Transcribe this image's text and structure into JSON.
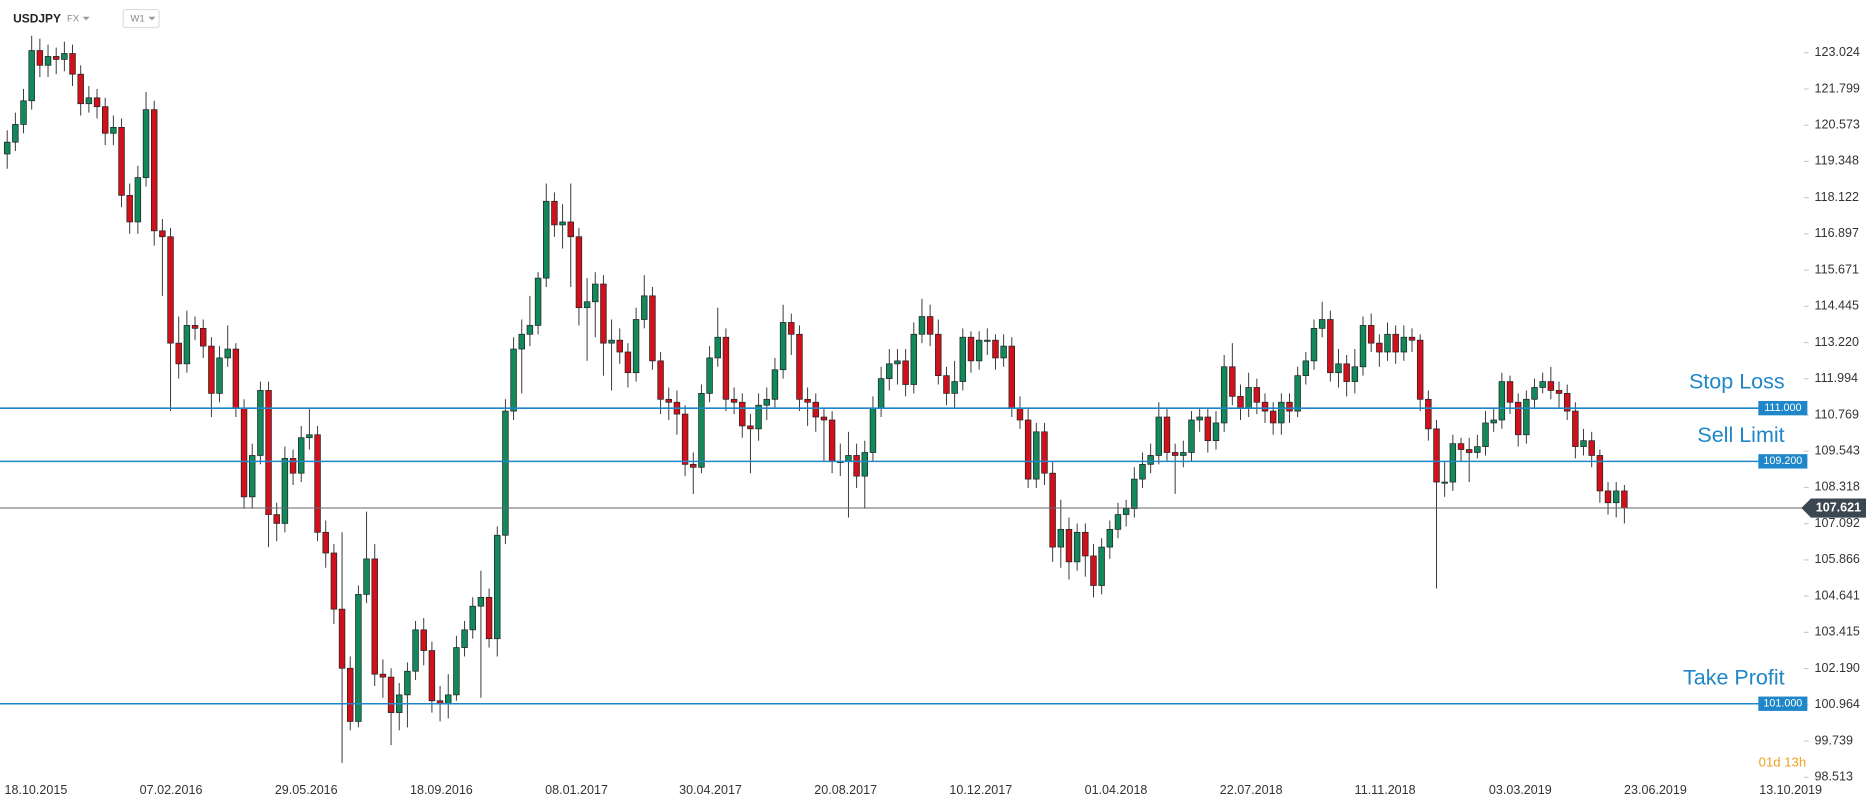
{
  "chart_data": {
    "type": "candlestick",
    "symbol": "USDJPY",
    "market": "FX",
    "timeframe": "W1",
    "timer": "01d 13h",
    "up_color": "#11895a",
    "down_color": "#d0111b",
    "level_color": "#1f86c9",
    "ylim": [
      98.1,
      124.0
    ],
    "yticks": [
      123.024,
      121.799,
      120.573,
      119.348,
      118.122,
      116.897,
      115.671,
      114.445,
      {
        "value": 113.22,
        "label": "113.220"
      },
      111.994,
      110.769,
      109.543,
      108.318,
      107.092,
      105.866,
      104.641,
      103.415,
      {
        "value": 102.19,
        "label": "102.190"
      },
      100.964,
      99.739,
      98.513
    ],
    "x_labels": [
      "18.10.2015",
      "07.02.2016",
      "29.05.2016",
      "18.09.2016",
      "08.01.2017",
      "30.04.2017",
      "20.08.2017",
      "10.12.2017",
      "01.04.2018",
      "22.07.2018",
      "11.11.2018",
      "03.03.2019",
      "23.06.2019",
      "13.10.2019"
    ],
    "last_price": 107.621,
    "levels": [
      {
        "name": "Stop Loss",
        "value": 111,
        "label": "111.000"
      },
      {
        "name": "Sell Limit",
        "value": 109.2,
        "label": "109.200"
      },
      {
        "name": "Take Profit",
        "value": 101,
        "label": "101.000"
      }
    ],
    "candles": [
      [
        119.6,
        120.4,
        119.1,
        120.0
      ],
      [
        120.0,
        121.0,
        119.7,
        120.6
      ],
      [
        120.6,
        121.8,
        120.3,
        121.4
      ],
      [
        121.4,
        123.6,
        121.1,
        123.1
      ],
      [
        123.1,
        123.5,
        122.2,
        122.6
      ],
      [
        122.6,
        123.3,
        122.2,
        122.9
      ],
      [
        122.9,
        123.2,
        122.3,
        122.8
      ],
      [
        122.8,
        123.4,
        122.4,
        123.0
      ],
      [
        123.0,
        123.3,
        121.9,
        122.3
      ],
      [
        122.3,
        122.6,
        120.9,
        121.3
      ],
      [
        121.3,
        121.9,
        121.0,
        121.5
      ],
      [
        121.5,
        121.8,
        120.8,
        121.2
      ],
      [
        121.2,
        121.5,
        119.9,
        120.3
      ],
      [
        120.3,
        120.9,
        119.9,
        120.5
      ],
      [
        120.5,
        120.8,
        117.8,
        118.2
      ],
      [
        118.2,
        118.6,
        116.9,
        117.3
      ],
      [
        117.3,
        119.2,
        116.9,
        118.8
      ],
      [
        118.8,
        121.7,
        118.5,
        121.1
      ],
      [
        121.1,
        121.4,
        116.5,
        117.0
      ],
      [
        117.0,
        117.4,
        114.8,
        116.8
      ],
      [
        116.8,
        117.1,
        110.9,
        113.2
      ],
      [
        113.2,
        114.1,
        112.0,
        112.5
      ],
      [
        112.5,
        114.3,
        112.2,
        113.8
      ],
      [
        113.8,
        114.1,
        113.3,
        113.7
      ],
      [
        113.7,
        114.0,
        112.7,
        113.1
      ],
      [
        113.1,
        113.4,
        110.7,
        111.5
      ],
      [
        111.5,
        113.1,
        111.2,
        112.7
      ],
      [
        112.7,
        113.8,
        112.4,
        113.0
      ],
      [
        113.0,
        113.2,
        110.7,
        111.0
      ],
      [
        111.0,
        111.3,
        107.6,
        108.0
      ],
      [
        108.0,
        109.8,
        107.6,
        109.4
      ],
      [
        109.4,
        111.9,
        109.1,
        111.6
      ],
      [
        111.6,
        111.9,
        106.3,
        107.4
      ],
      [
        107.4,
        107.8,
        106.5,
        107.1
      ],
      [
        107.1,
        109.7,
        106.8,
        109.3
      ],
      [
        109.3,
        109.6,
        108.4,
        108.8
      ],
      [
        108.8,
        110.4,
        108.5,
        110.0
      ],
      [
        110.0,
        111.0,
        109.6,
        110.1
      ],
      [
        110.1,
        110.4,
        106.5,
        106.8
      ],
      [
        106.8,
        107.2,
        105.6,
        106.1
      ],
      [
        106.1,
        106.4,
        103.7,
        104.2
      ],
      [
        104.2,
        106.8,
        99.0,
        102.2
      ],
      [
        102.2,
        102.6,
        100.1,
        100.4
      ],
      [
        100.4,
        105.0,
        100.2,
        104.7
      ],
      [
        104.7,
        107.5,
        104.4,
        105.9
      ],
      [
        105.9,
        106.4,
        101.6,
        102.0
      ],
      [
        102.0,
        102.5,
        101.2,
        101.9
      ],
      [
        101.9,
        102.2,
        99.6,
        100.7
      ],
      [
        100.7,
        101.7,
        100.1,
        101.3
      ],
      [
        101.3,
        102.4,
        100.2,
        102.1
      ],
      [
        102.1,
        103.8,
        101.8,
        103.5
      ],
      [
        103.5,
        103.9,
        102.3,
        102.8
      ],
      [
        102.8,
        103.1,
        100.7,
        101.1
      ],
      [
        101.1,
        101.6,
        100.4,
        101.0
      ],
      [
        101.0,
        102.0,
        100.5,
        101.3
      ],
      [
        101.3,
        103.3,
        101.1,
        102.9
      ],
      [
        102.9,
        103.8,
        102.6,
        103.5
      ],
      [
        103.5,
        104.6,
        103.2,
        104.3
      ],
      [
        104.3,
        105.5,
        101.2,
        104.6
      ],
      [
        104.6,
        104.9,
        102.9,
        103.2
      ],
      [
        103.2,
        107.0,
        102.6,
        106.7
      ],
      [
        106.7,
        111.3,
        106.4,
        110.9
      ],
      [
        110.9,
        113.4,
        110.6,
        113.0
      ],
      [
        113.0,
        114.0,
        111.5,
        113.5
      ],
      [
        113.5,
        114.8,
        113.1,
        113.8
      ],
      [
        113.8,
        115.6,
        113.5,
        115.4
      ],
      [
        115.4,
        118.6,
        115.1,
        118.0
      ],
      [
        118.0,
        118.3,
        116.8,
        117.2
      ],
      [
        117.2,
        117.9,
        116.4,
        117.3
      ],
      [
        117.3,
        118.6,
        115.1,
        116.8
      ],
      [
        116.8,
        117.1,
        113.8,
        114.4
      ],
      [
        114.4,
        115.4,
        112.6,
        114.6
      ],
      [
        114.6,
        115.6,
        113.4,
        115.2
      ],
      [
        115.2,
        115.5,
        112.1,
        113.2
      ],
      [
        113.2,
        114.0,
        111.6,
        113.3
      ],
      [
        113.3,
        113.7,
        112.5,
        112.9
      ],
      [
        112.9,
        113.2,
        111.7,
        112.2
      ],
      [
        112.2,
        114.4,
        111.9,
        114.0
      ],
      [
        114.0,
        115.5,
        113.7,
        114.8
      ],
      [
        114.8,
        115.1,
        112.3,
        112.6
      ],
      [
        112.6,
        112.9,
        110.8,
        111.3
      ],
      [
        111.3,
        111.7,
        110.6,
        111.2
      ],
      [
        111.2,
        111.6,
        110.1,
        110.8
      ],
      [
        110.8,
        111.1,
        108.7,
        109.1
      ],
      [
        109.1,
        109.5,
        108.1,
        109.0
      ],
      [
        109.0,
        111.8,
        108.8,
        111.5
      ],
      [
        111.5,
        113.1,
        111.2,
        112.7
      ],
      [
        112.7,
        114.4,
        112.4,
        113.4
      ],
      [
        113.4,
        113.7,
        110.9,
        111.3
      ],
      [
        111.3,
        111.7,
        110.8,
        111.2
      ],
      [
        111.2,
        111.5,
        110.0,
        110.4
      ],
      [
        110.4,
        110.8,
        108.8,
        110.3
      ],
      [
        110.3,
        111.5,
        109.9,
        111.1
      ],
      [
        111.1,
        111.7,
        110.6,
        111.3
      ],
      [
        111.3,
        112.7,
        111.0,
        112.3
      ],
      [
        112.3,
        114.5,
        112.0,
        113.9
      ],
      [
        113.9,
        114.2,
        112.8,
        113.5
      ],
      [
        113.5,
        113.8,
        110.9,
        111.3
      ],
      [
        111.3,
        111.7,
        110.4,
        111.2
      ],
      [
        111.2,
        111.5,
        110.2,
        110.7
      ],
      [
        110.7,
        111.0,
        109.2,
        110.6
      ],
      [
        110.6,
        110.9,
        108.8,
        109.2
      ],
      [
        109.2,
        109.8,
        108.7,
        109.2
      ],
      [
        109.2,
        110.2,
        107.3,
        109.4
      ],
      [
        109.4,
        109.8,
        108.3,
        108.7
      ],
      [
        108.7,
        109.9,
        107.6,
        109.5
      ],
      [
        109.5,
        111.4,
        109.2,
        111.0
      ],
      [
        111.0,
        112.4,
        110.7,
        112.0
      ],
      [
        112.0,
        113.0,
        111.6,
        112.5
      ],
      [
        112.5,
        113.0,
        111.8,
        112.6
      ],
      [
        112.6,
        113.0,
        111.4,
        111.8
      ],
      [
        111.8,
        113.9,
        111.5,
        113.5
      ],
      [
        113.5,
        114.7,
        113.2,
        114.1
      ],
      [
        114.1,
        114.5,
        113.1,
        113.5
      ],
      [
        113.5,
        114.0,
        111.8,
        112.1
      ],
      [
        112.1,
        112.4,
        111.1,
        111.5
      ],
      [
        111.5,
        112.6,
        111.0,
        111.9
      ],
      [
        111.9,
        113.7,
        111.6,
        113.4
      ],
      [
        113.4,
        113.6,
        112.2,
        112.6
      ],
      [
        112.6,
        113.6,
        112.3,
        113.3
      ],
      [
        113.3,
        113.7,
        112.8,
        113.3
      ],
      [
        113.3,
        113.5,
        112.3,
        112.7
      ],
      [
        112.7,
        113.5,
        112.4,
        113.1
      ],
      [
        113.1,
        113.4,
        110.7,
        111.0
      ],
      [
        111.0,
        111.4,
        110.3,
        110.6
      ],
      [
        110.6,
        111.0,
        108.3,
        108.6
      ],
      [
        108.6,
        110.5,
        108.3,
        110.2
      ],
      [
        110.2,
        110.5,
        108.4,
        108.8
      ],
      [
        108.8,
        109.2,
        105.8,
        106.3
      ],
      [
        106.3,
        107.9,
        105.6,
        106.9
      ],
      [
        106.9,
        107.3,
        105.2,
        105.8
      ],
      [
        105.8,
        107.1,
        105.5,
        106.8
      ],
      [
        106.8,
        107.1,
        105.3,
        106.0
      ],
      [
        106.0,
        106.4,
        104.6,
        105.0
      ],
      [
        105.0,
        106.6,
        104.7,
        106.3
      ],
      [
        106.3,
        107.2,
        105.9,
        106.9
      ],
      [
        106.9,
        107.8,
        106.6,
        107.4
      ],
      [
        107.4,
        107.9,
        107.0,
        107.6
      ],
      [
        107.6,
        109.0,
        107.3,
        108.6
      ],
      [
        108.6,
        109.5,
        108.3,
        109.1
      ],
      [
        109.1,
        109.8,
        108.8,
        109.4
      ],
      [
        109.4,
        111.2,
        109.1,
        110.7
      ],
      [
        110.7,
        111.0,
        109.2,
        109.5
      ],
      [
        109.5,
        109.8,
        108.1,
        109.4
      ],
      [
        109.4,
        109.9,
        109.0,
        109.5
      ],
      [
        109.5,
        110.9,
        109.2,
        110.6
      ],
      [
        110.6,
        111.0,
        110.2,
        110.7
      ],
      [
        110.7,
        111.0,
        109.5,
        109.9
      ],
      [
        109.9,
        110.9,
        109.6,
        110.5
      ],
      [
        110.5,
        112.8,
        110.2,
        112.4
      ],
      [
        112.4,
        113.2,
        111.1,
        111.4
      ],
      [
        111.4,
        111.8,
        110.6,
        111.0
      ],
      [
        111.0,
        112.2,
        110.7,
        111.7
      ],
      [
        111.7,
        112.0,
        110.8,
        111.2
      ],
      [
        111.2,
        111.5,
        110.5,
        110.9
      ],
      [
        110.9,
        111.2,
        110.1,
        110.5
      ],
      [
        110.5,
        111.5,
        110.1,
        111.2
      ],
      [
        111.2,
        111.5,
        110.5,
        110.9
      ],
      [
        110.9,
        112.4,
        110.7,
        112.1
      ],
      [
        112.1,
        112.9,
        111.8,
        112.6
      ],
      [
        112.6,
        114.0,
        112.3,
        113.7
      ],
      [
        113.7,
        114.6,
        113.4,
        114.0
      ],
      [
        114.0,
        114.3,
        111.9,
        112.2
      ],
      [
        112.2,
        113.0,
        111.7,
        112.5
      ],
      [
        112.5,
        112.8,
        111.4,
        111.9
      ],
      [
        111.9,
        113.0,
        111.5,
        112.4
      ],
      [
        112.4,
        114.1,
        112.1,
        113.8
      ],
      [
        113.8,
        114.2,
        112.9,
        113.2
      ],
      [
        113.2,
        113.5,
        112.4,
        112.9
      ],
      [
        112.9,
        113.9,
        112.6,
        113.5
      ],
      [
        113.5,
        113.8,
        112.5,
        112.9
      ],
      [
        112.9,
        113.8,
        112.6,
        113.4
      ],
      [
        113.4,
        113.7,
        112.9,
        113.3
      ],
      [
        113.3,
        113.5,
        110.9,
        111.3
      ],
      [
        111.3,
        111.6,
        109.9,
        110.3
      ],
      [
        110.3,
        110.6,
        104.9,
        108.5
      ],
      [
        108.5,
        109.2,
        108.0,
        108.5
      ],
      [
        108.5,
        110.1,
        108.2,
        109.8
      ],
      [
        109.8,
        110.0,
        109.2,
        109.6
      ],
      [
        109.6,
        110.0,
        108.5,
        109.5
      ],
      [
        109.5,
        110.1,
        109.3,
        109.7
      ],
      [
        109.7,
        110.9,
        109.4,
        110.5
      ],
      [
        110.5,
        111.0,
        110.2,
        110.6
      ],
      [
        110.6,
        112.2,
        110.3,
        111.9
      ],
      [
        111.9,
        112.1,
        110.8,
        111.2
      ],
      [
        111.2,
        111.5,
        109.7,
        110.1
      ],
      [
        110.1,
        111.6,
        109.8,
        111.3
      ],
      [
        111.3,
        112.0,
        111.0,
        111.7
      ],
      [
        111.7,
        112.2,
        111.5,
        111.9
      ],
      [
        111.9,
        112.4,
        111.3,
        111.6
      ],
      [
        111.6,
        111.9,
        111.0,
        111.5
      ],
      [
        111.5,
        111.8,
        110.6,
        110.9
      ],
      [
        110.9,
        111.2,
        109.3,
        109.7
      ],
      [
        109.7,
        110.3,
        109.4,
        109.9
      ],
      [
        109.9,
        110.2,
        109.0,
        109.4
      ],
      [
        109.4,
        109.6,
        107.8,
        108.2
      ],
      [
        108.2,
        108.5,
        107.4,
        107.8
      ],
      [
        107.8,
        108.5,
        107.3,
        108.2
      ],
      [
        108.2,
        108.4,
        107.1,
        107.621
      ]
    ]
  }
}
